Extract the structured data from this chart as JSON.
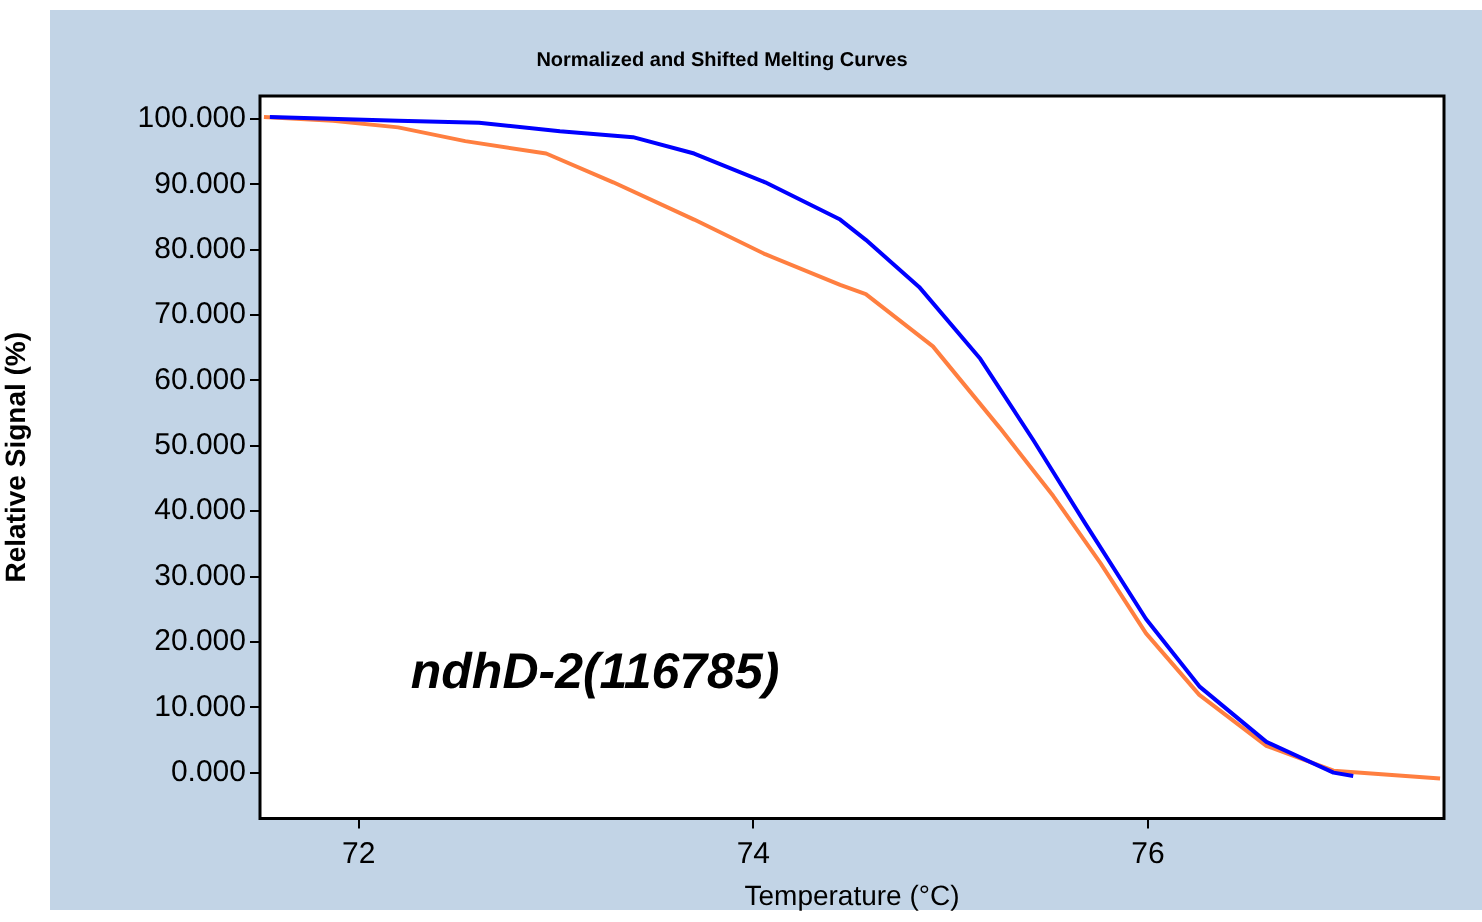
{
  "chart_data": {
    "type": "line",
    "title": "Normalized and Shifted Melting Curves",
    "xlabel": "Temperature (°C)",
    "ylabel": "Relative Signal (%)",
    "annotations": [
      "ndhD-2(116785)"
    ],
    "xlim": [
      71.5,
      77.5
    ],
    "ylim": [
      -7,
      103.5
    ],
    "xticks": [
      72,
      74,
      76
    ],
    "yticks": [
      {
        "value": 0,
        "label": "0.000"
      },
      {
        "value": 10,
        "label": "10.000"
      },
      {
        "value": 20,
        "label": "20.000"
      },
      {
        "value": 30,
        "label": "30.000"
      },
      {
        "value": 40,
        "label": "40.000"
      },
      {
        "value": 50,
        "label": "50.000"
      },
      {
        "value": 60,
        "label": "60.000"
      },
      {
        "value": 70,
        "label": "70.000"
      },
      {
        "value": 80,
        "label": "80.000"
      },
      {
        "value": 90,
        "label": "90.000"
      },
      {
        "value": 100,
        "label": "100.000"
      }
    ],
    "marker": "none",
    "series": [
      {
        "color": "#0000ff",
        "x": [
          71.55,
          72.2,
          72.61,
          73.02,
          73.39,
          73.7,
          74.06,
          74.44,
          74.57,
          74.84,
          75.15,
          75.42,
          75.68,
          75.99,
          76.26,
          76.6,
          76.94,
          77.04
        ],
        "values": [
          100.3,
          99.7,
          99.4,
          98.1,
          97.2,
          94.7,
          90.3,
          84.6,
          81.5,
          74.3,
          63.3,
          50.8,
          38.2,
          23.5,
          13.2,
          4.7,
          0,
          -0.5
        ]
      },
      {
        "color": "#ff7f40",
        "x": [
          71.52,
          71.87,
          72.2,
          72.54,
          72.95,
          73.29,
          73.7,
          74.06,
          74.44,
          74.57,
          74.91,
          75.25,
          75.52,
          75.76,
          75.99,
          76.26,
          76.6,
          76.94,
          77.48
        ],
        "values": [
          100.3,
          99.7,
          98.7,
          96.6,
          94.7,
          90.3,
          84.6,
          79.3,
          74.6,
          73.2,
          65.2,
          52.7,
          42.3,
          32,
          21.3,
          11.9,
          4.1,
          0.3,
          -0.9
        ]
      }
    ]
  }
}
